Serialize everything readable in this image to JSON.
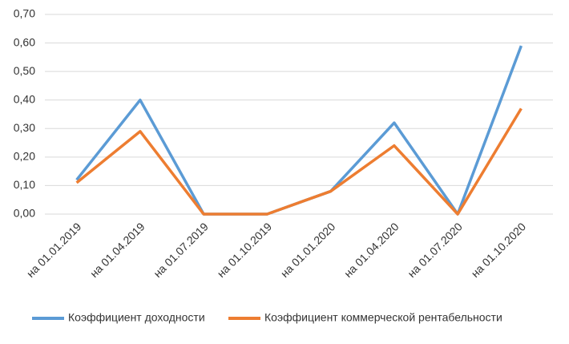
{
  "chart_data": {
    "type": "line",
    "categories": [
      "на 01.01.2019",
      "на 01.04.2019",
      "на 01.07.2019",
      "на 01.10.2019",
      "на 01.01.2020",
      "на 01.04.2020",
      "на 01.07.2020",
      "на 01.10.2020"
    ],
    "series": [
      {
        "name": "Коэффициент доходности",
        "color": "#5b9bd5",
        "values": [
          0.12,
          0.4,
          0,
          0,
          0.08,
          0.32,
          0,
          0.59
        ]
      },
      {
        "name": "Коэффициент коммерческой рентабельности",
        "color": "#ed7d31",
        "values": [
          0.11,
          0.29,
          0,
          0,
          0.08,
          0.24,
          0,
          0.37
        ]
      }
    ],
    "ylim": [
      0,
      0.7
    ],
    "yticks": [
      {
        "value": 0,
        "label": "0,00"
      },
      {
        "value": 0.1,
        "label": "0,10"
      },
      {
        "value": 0.2,
        "label": "0,20"
      },
      {
        "value": 0.3,
        "label": "0,30"
      },
      {
        "value": 0.4,
        "label": "0,40"
      },
      {
        "value": 0.5,
        "label": "0,50"
      },
      {
        "value": 0.6,
        "label": "0,60"
      },
      {
        "value": 0.7,
        "label": "0,70"
      }
    ],
    "grid": true,
    "legend": "bottom"
  }
}
